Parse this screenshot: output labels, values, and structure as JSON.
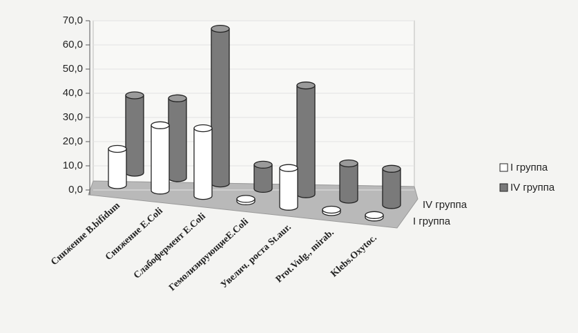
{
  "chart_data": {
    "type": "bar3d",
    "categories": [
      "Снижение B.bifidum",
      "Снижение E.Coli",
      "Слабофермент E.Coli",
      "ГемолизирующиеE.Coli",
      "Увелич. роста St.aur.",
      "Prot.Vulg., mirab.",
      "Klebs.Oxytoc."
    ],
    "series": [
      {
        "name": "I группа",
        "color": "#ffffff",
        "values": [
          15,
          27,
          28,
          1,
          16,
          1,
          1
        ]
      },
      {
        "name": "IV группа",
        "color": "#7a7a7a",
        "values": [
          32,
          33,
          64,
          10,
          45,
          15,
          15
        ]
      }
    ],
    "ylim": [
      0,
      70
    ],
    "yticks": [
      {
        "value": 0,
        "label": "0,0"
      },
      {
        "value": 10,
        "label": "10,0"
      },
      {
        "value": 20,
        "label": "20,0"
      },
      {
        "value": 30,
        "label": "30,0"
      },
      {
        "value": 40,
        "label": "40,0"
      },
      {
        "value": 50,
        "label": "50,0"
      },
      {
        "value": 60,
        "label": "60,0"
      },
      {
        "value": 70,
        "label": "70,0"
      }
    ],
    "grid": true
  }
}
